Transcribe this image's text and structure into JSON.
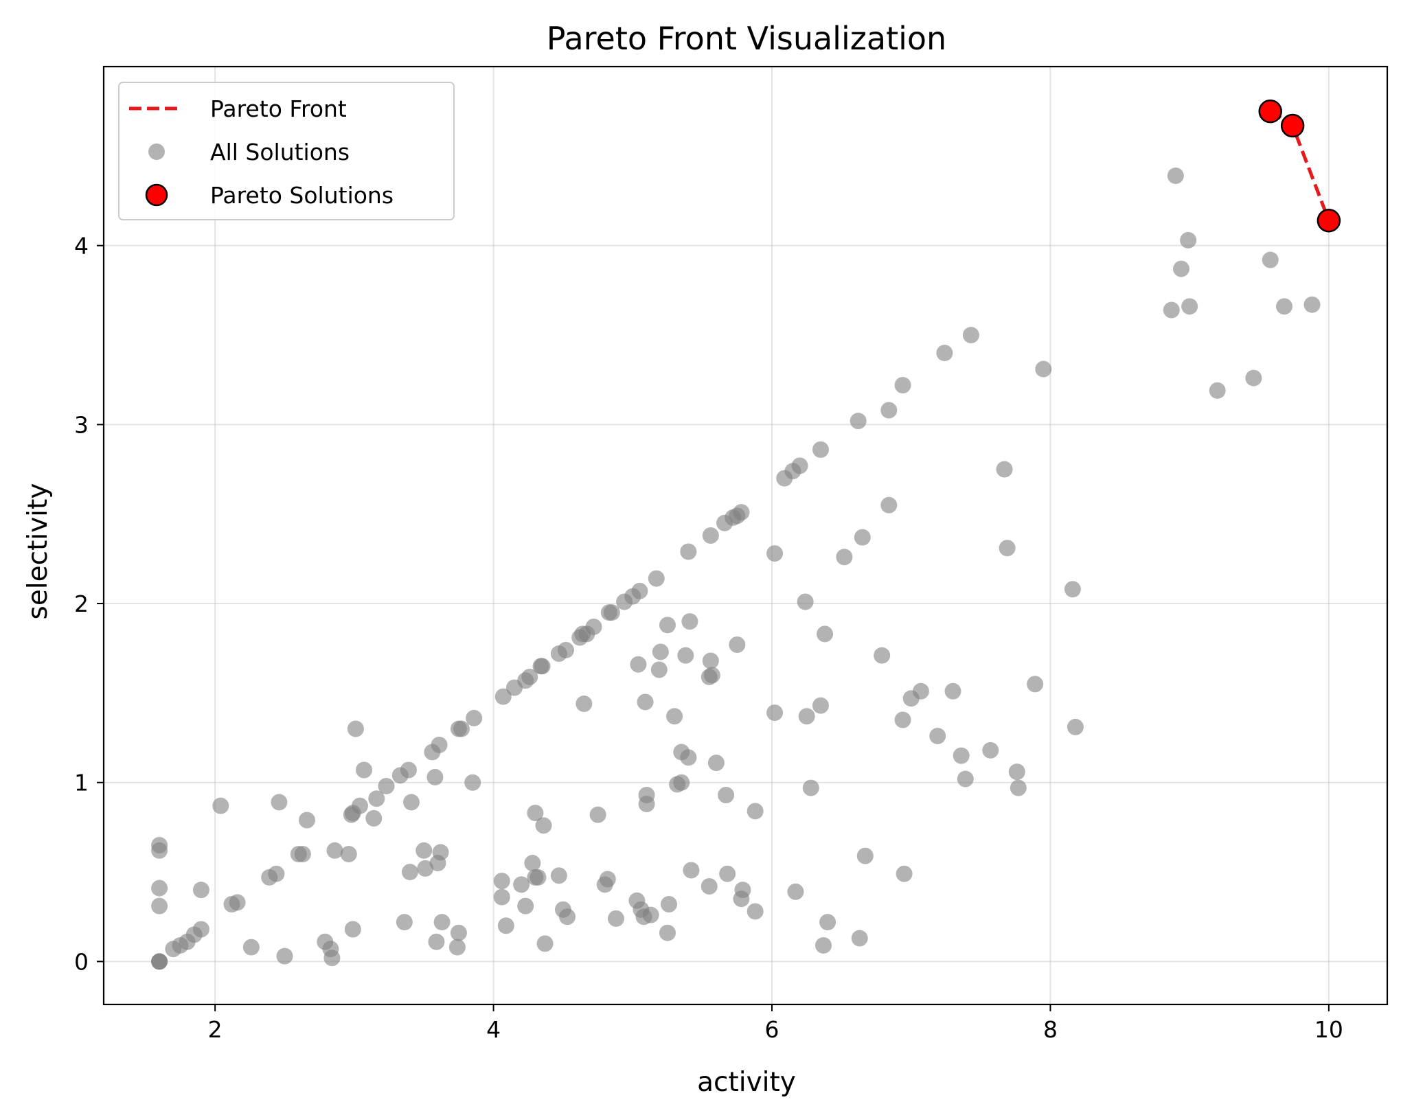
{
  "chart_data": {
    "type": "scatter",
    "title": "Pareto Front Visualization",
    "xlabel": "activity",
    "ylabel": "selectivity",
    "xlim": [
      1.2,
      10.42
    ],
    "ylim": [
      -0.24,
      5.0
    ],
    "xticks": [
      2,
      4,
      6,
      8,
      10
    ],
    "yticks": [
      0,
      1,
      2,
      3,
      4
    ],
    "grid": true,
    "legend_position": "top-left",
    "colors": {
      "pareto": "#ff0000",
      "pareto_line": "#e41a1c",
      "solutions": "#808080"
    },
    "legend": [
      "Pareto Front",
      "All Solutions",
      "Pareto Solutions"
    ],
    "series": [
      {
        "name": "All Solutions",
        "points": [
          [
            1.6,
            0.0
          ],
          [
            1.6,
            0.0
          ],
          [
            1.6,
            0.0
          ],
          [
            1.6,
            0.31
          ],
          [
            1.6,
            0.41
          ],
          [
            1.6,
            0.62
          ],
          [
            1.6,
            0.65
          ],
          [
            1.7,
            0.07
          ],
          [
            1.75,
            0.09
          ],
          [
            1.8,
            0.11
          ],
          [
            1.85,
            0.15
          ],
          [
            1.9,
            0.18
          ],
          [
            1.9,
            0.4
          ],
          [
            2.04,
            0.87
          ],
          [
            2.12,
            0.32
          ],
          [
            2.16,
            0.33
          ],
          [
            2.26,
            0.08
          ],
          [
            2.39,
            0.47
          ],
          [
            2.44,
            0.49
          ],
          [
            2.46,
            0.89
          ],
          [
            2.5,
            0.03
          ],
          [
            2.6,
            0.6
          ],
          [
            2.63,
            0.6
          ],
          [
            2.66,
            0.79
          ],
          [
            2.79,
            0.11
          ],
          [
            2.83,
            0.07
          ],
          [
            2.84,
            0.02
          ],
          [
            2.86,
            0.62
          ],
          [
            2.96,
            0.6
          ],
          [
            2.98,
            0.82
          ],
          [
            2.99,
            0.83
          ],
          [
            2.99,
            0.18
          ],
          [
            3.01,
            1.3
          ],
          [
            3.04,
            0.87
          ],
          [
            3.07,
            1.07
          ],
          [
            3.14,
            0.8
          ],
          [
            3.16,
            0.91
          ],
          [
            3.23,
            0.98
          ],
          [
            3.33,
            1.04
          ],
          [
            3.36,
            0.22
          ],
          [
            3.39,
            1.07
          ],
          [
            3.4,
            0.5
          ],
          [
            3.41,
            0.89
          ],
          [
            3.5,
            0.62
          ],
          [
            3.51,
            0.52
          ],
          [
            3.56,
            1.17
          ],
          [
            3.58,
            1.03
          ],
          [
            3.59,
            0.11
          ],
          [
            3.6,
            0.55
          ],
          [
            3.61,
            1.21
          ],
          [
            3.62,
            0.61
          ],
          [
            3.63,
            0.22
          ],
          [
            3.74,
            0.08
          ],
          [
            3.75,
            0.16
          ],
          [
            3.75,
            1.3
          ],
          [
            3.77,
            1.3
          ],
          [
            3.85,
            1.0
          ],
          [
            3.86,
            1.36
          ],
          [
            4.06,
            0.45
          ],
          [
            4.06,
            0.36
          ],
          [
            4.07,
            1.48
          ],
          [
            4.09,
            0.2
          ],
          [
            4.15,
            1.53
          ],
          [
            4.2,
            0.43
          ],
          [
            4.23,
            1.57
          ],
          [
            4.23,
            0.31
          ],
          [
            4.26,
            1.59
          ],
          [
            4.28,
            0.55
          ],
          [
            4.3,
            0.47
          ],
          [
            4.3,
            0.83
          ],
          [
            4.32,
            0.47
          ],
          [
            4.34,
            1.65
          ],
          [
            4.35,
            1.65
          ],
          [
            4.36,
            0.76
          ],
          [
            4.37,
            0.1
          ],
          [
            4.47,
            0.48
          ],
          [
            4.47,
            1.72
          ],
          [
            4.5,
            0.29
          ],
          [
            4.52,
            1.74
          ],
          [
            4.53,
            0.25
          ],
          [
            4.62,
            1.81
          ],
          [
            4.64,
            1.83
          ],
          [
            4.65,
            1.44
          ],
          [
            4.67,
            1.83
          ],
          [
            4.72,
            1.87
          ],
          [
            4.75,
            0.82
          ],
          [
            4.8,
            0.43
          ],
          [
            4.82,
            0.46
          ],
          [
            4.83,
            1.95
          ],
          [
            4.85,
            1.95
          ],
          [
            4.88,
            0.24
          ],
          [
            4.94,
            2.01
          ],
          [
            5.0,
            2.04
          ],
          [
            5.03,
            0.34
          ],
          [
            5.04,
            1.66
          ],
          [
            5.05,
            2.07
          ],
          [
            5.06,
            0.29
          ],
          [
            5.08,
            0.25
          ],
          [
            5.09,
            1.45
          ],
          [
            5.1,
            0.93
          ],
          [
            5.1,
            0.88
          ],
          [
            5.13,
            0.26
          ],
          [
            5.17,
            2.14
          ],
          [
            5.19,
            1.63
          ],
          [
            5.2,
            1.73
          ],
          [
            5.25,
            0.16
          ],
          [
            5.25,
            1.88
          ],
          [
            5.26,
            0.32
          ],
          [
            5.3,
            1.37
          ],
          [
            5.32,
            0.99
          ],
          [
            5.35,
            1.0
          ],
          [
            5.35,
            1.17
          ],
          [
            5.38,
            1.71
          ],
          [
            5.4,
            1.14
          ],
          [
            5.4,
            2.29
          ],
          [
            5.41,
            1.9
          ],
          [
            5.42,
            0.51
          ],
          [
            5.55,
            1.59
          ],
          [
            5.55,
            0.42
          ],
          [
            5.56,
            2.38
          ],
          [
            5.56,
            1.68
          ],
          [
            5.57,
            1.6
          ],
          [
            5.6,
            1.11
          ],
          [
            5.66,
            2.45
          ],
          [
            5.67,
            0.93
          ],
          [
            5.68,
            0.49
          ],
          [
            5.72,
            2.48
          ],
          [
            5.75,
            1.77
          ],
          [
            5.75,
            2.49
          ],
          [
            5.78,
            2.51
          ],
          [
            5.78,
            0.35
          ],
          [
            5.79,
            0.4
          ],
          [
            5.88,
            0.28
          ],
          [
            5.88,
            0.84
          ],
          [
            6.02,
            1.39
          ],
          [
            6.02,
            2.28
          ],
          [
            6.09,
            2.7
          ],
          [
            6.15,
            2.74
          ],
          [
            6.17,
            0.39
          ],
          [
            6.2,
            2.77
          ],
          [
            6.24,
            2.01
          ],
          [
            6.25,
            1.37
          ],
          [
            6.28,
            0.97
          ],
          [
            6.35,
            1.43
          ],
          [
            6.35,
            2.86
          ],
          [
            6.37,
            0.09
          ],
          [
            6.38,
            1.83
          ],
          [
            6.4,
            0.22
          ],
          [
            6.52,
            2.26
          ],
          [
            6.62,
            3.02
          ],
          [
            6.63,
            0.13
          ],
          [
            6.65,
            2.37
          ],
          [
            6.67,
            0.59
          ],
          [
            6.79,
            1.71
          ],
          [
            6.84,
            2.55
          ],
          [
            6.84,
            3.08
          ],
          [
            6.94,
            1.35
          ],
          [
            6.94,
            3.22
          ],
          [
            6.95,
            0.49
          ],
          [
            7.0,
            1.47
          ],
          [
            7.07,
            1.51
          ],
          [
            7.19,
            1.26
          ],
          [
            7.24,
            3.4
          ],
          [
            7.3,
            1.51
          ],
          [
            7.36,
            1.15
          ],
          [
            7.39,
            1.02
          ],
          [
            7.43,
            3.5
          ],
          [
            7.57,
            1.18
          ],
          [
            7.67,
            2.75
          ],
          [
            7.69,
            2.31
          ],
          [
            7.76,
            1.06
          ],
          [
            7.77,
            0.97
          ],
          [
            7.89,
            1.55
          ],
          [
            7.95,
            3.31
          ],
          [
            8.16,
            2.08
          ],
          [
            8.18,
            1.31
          ],
          [
            8.87,
            3.64
          ],
          [
            8.9,
            4.39
          ],
          [
            8.94,
            3.87
          ],
          [
            8.99,
            4.03
          ],
          [
            9.0,
            3.66
          ],
          [
            9.2,
            3.19
          ],
          [
            9.46,
            3.26
          ],
          [
            9.58,
            3.92
          ],
          [
            9.68,
            3.66
          ],
          [
            9.88,
            3.67
          ]
        ]
      },
      {
        "name": "Pareto Solutions",
        "points": [
          [
            9.58,
            4.75
          ],
          [
            9.74,
            4.67
          ],
          [
            10.0,
            4.14
          ]
        ]
      }
    ]
  }
}
